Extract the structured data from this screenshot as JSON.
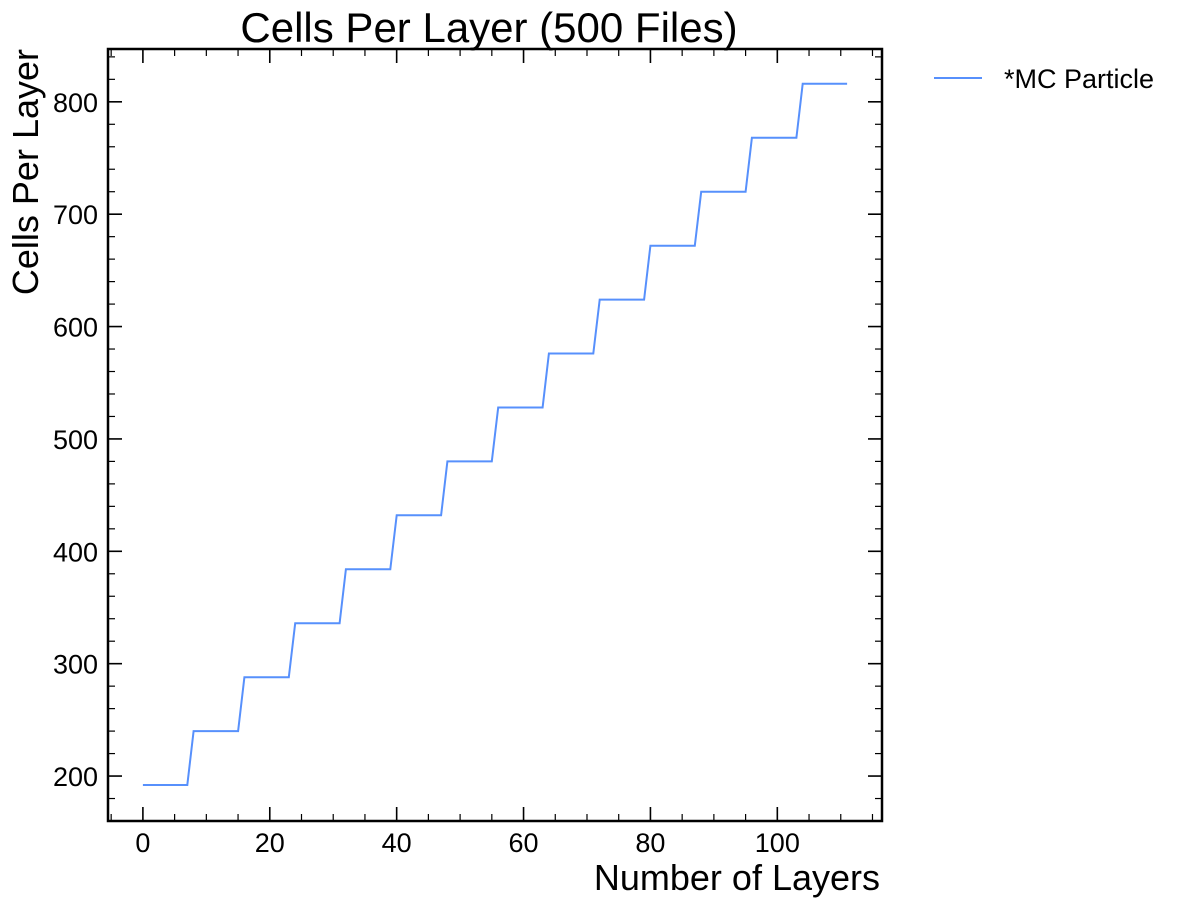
{
  "chart_data": {
    "type": "line",
    "title": "Cells Per Layer (500 Files)",
    "xlabel": "Number of Layers",
    "ylabel": "Cells Per Layer",
    "xlim": [
      -5.5,
      116.5
    ],
    "ylim": [
      160,
      847
    ],
    "xticks": [
      0,
      20,
      40,
      60,
      80,
      100
    ],
    "yticks": [
      200,
      300,
      400,
      500,
      600,
      700,
      800
    ],
    "grid": false,
    "legend_position": "outside-top-right",
    "series": [
      {
        "name": "*MC Particle",
        "color": "#5790fc",
        "x": [
          0,
          7,
          8,
          15,
          16,
          23,
          24,
          31,
          32,
          39,
          40,
          47,
          48,
          55,
          56,
          63,
          64,
          71,
          72,
          79,
          80,
          87,
          88,
          95,
          96,
          103,
          104,
          111
        ],
        "y": [
          192,
          192,
          240,
          240,
          288,
          288,
          336,
          336,
          384,
          384,
          432,
          432,
          480,
          480,
          528,
          528,
          576,
          576,
          624,
          624,
          672,
          672,
          720,
          720,
          768,
          768,
          816,
          816
        ]
      }
    ]
  }
}
